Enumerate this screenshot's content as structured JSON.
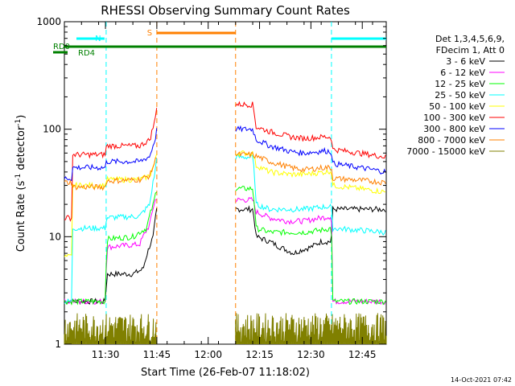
{
  "chart_data": {
    "type": "line",
    "title": "RHESSI Observing Summary Count Rates",
    "xlabel": "Start Time (26-Feb-07 11:18:02)",
    "ylabel_parts": [
      "Count Rate (s",
      "-1",
      " detector",
      "-1",
      ")"
    ],
    "y_scale": "log",
    "ylim": [
      1,
      1000
    ],
    "xlim_minutes": [
      0,
      94
    ],
    "x_ticks": [
      {
        "minute": 12,
        "label": "11:30"
      },
      {
        "minute": 27,
        "label": "11:45"
      },
      {
        "minute": 42,
        "label": "12:00"
      },
      {
        "minute": 57,
        "label": "12:15"
      },
      {
        "minute": 72,
        "label": "12:30"
      },
      {
        "minute": 87,
        "label": "12:45"
      }
    ],
    "y_ticks": [
      {
        "value": 1,
        "label": "1"
      },
      {
        "value": 10,
        "label": "10"
      },
      {
        "value": 100,
        "label": "100"
      },
      {
        "value": 1000,
        "label": "1000"
      }
    ],
    "legend_header": [
      "Det 1,3,4,5,6,9,",
      "FDecim 1, Att 0"
    ],
    "series": [
      {
        "name": "3 - 6 keV",
        "color": "#000000",
        "points": [
          [
            0,
            2.5
          ],
          [
            12.2,
            2.5
          ],
          [
            12.3,
            4.5
          ],
          [
            20,
            4.5
          ],
          [
            23,
            5
          ],
          [
            26,
            10
          ],
          [
            27,
            18
          ],
          [
            55,
            18
          ],
          [
            56,
            10
          ],
          [
            60,
            9
          ],
          [
            63,
            8
          ],
          [
            67,
            7
          ],
          [
            69,
            7.5
          ],
          [
            72,
            8
          ],
          [
            75,
            9
          ],
          [
            78,
            9
          ],
          [
            78.3,
            18
          ],
          [
            94,
            18
          ]
        ]
      },
      {
        "name": "6 - 12 keV",
        "color": "#ff00ff",
        "points": [
          [
            0,
            2.5
          ],
          [
            12.2,
            2.5
          ],
          [
            12.3,
            8
          ],
          [
            22,
            8.5
          ],
          [
            25,
            13
          ],
          [
            26.5,
            22
          ],
          [
            55,
            22
          ],
          [
            56,
            17
          ],
          [
            60,
            15
          ],
          [
            65,
            14
          ],
          [
            70,
            14
          ],
          [
            75,
            15
          ],
          [
            78,
            15.5
          ],
          [
            78.3,
            2.5
          ],
          [
            94,
            2.5
          ]
        ]
      },
      {
        "name": "12 - 25 keV",
        "color": "#00ff00",
        "points": [
          [
            0,
            2.5
          ],
          [
            12.2,
            2.5
          ],
          [
            12.3,
            9.5
          ],
          [
            20,
            10
          ],
          [
            24,
            12
          ],
          [
            26,
            20
          ],
          [
            27,
            28
          ],
          [
            55,
            28
          ],
          [
            56,
            12
          ],
          [
            60,
            11
          ],
          [
            66,
            11
          ],
          [
            70,
            11
          ],
          [
            75,
            11.5
          ],
          [
            78,
            12
          ],
          [
            78.3,
            2.5
          ],
          [
            94,
            2.5
          ]
        ]
      },
      {
        "name": "25 - 50 keV",
        "color": "#00ffff",
        "points": [
          [
            0,
            2.5
          ],
          [
            2.3,
            2.5
          ],
          [
            2.4,
            12
          ],
          [
            12,
            12
          ],
          [
            12.3,
            15
          ],
          [
            22,
            15.5
          ],
          [
            25,
            20
          ],
          [
            26.5,
            40
          ],
          [
            27,
            55
          ],
          [
            55,
            55
          ],
          [
            56,
            20
          ],
          [
            60,
            18
          ],
          [
            66,
            18
          ],
          [
            70,
            18
          ],
          [
            76,
            19
          ],
          [
            78,
            19
          ],
          [
            78.3,
            12
          ],
          [
            94,
            11
          ]
        ]
      },
      {
        "name": "50 - 100 keV",
        "color": "#ffff00",
        "points": [
          [
            0,
            6.5
          ],
          [
            2.3,
            6.5
          ],
          [
            2.4,
            30
          ],
          [
            12,
            30
          ],
          [
            12.3,
            34
          ],
          [
            22,
            34
          ],
          [
            25,
            37
          ],
          [
            26.5,
            50
          ],
          [
            27,
            60
          ],
          [
            55,
            60
          ],
          [
            56,
            46
          ],
          [
            60,
            40
          ],
          [
            66,
            38
          ],
          [
            70,
            38
          ],
          [
            76,
            40
          ],
          [
            78,
            41
          ],
          [
            78.3,
            30
          ],
          [
            94,
            26
          ]
        ]
      },
      {
        "name": "100 - 300 keV",
        "color": "#ff0000",
        "points": [
          [
            0,
            15
          ],
          [
            2.3,
            15
          ],
          [
            2.4,
            58
          ],
          [
            12,
            58
          ],
          [
            12.3,
            70
          ],
          [
            22,
            70
          ],
          [
            25,
            80
          ],
          [
            26.5,
            120
          ],
          [
            27,
            170
          ],
          [
            27.1,
            170
          ],
          [
            55,
            170
          ],
          [
            56,
            105
          ],
          [
            60,
            95
          ],
          [
            66,
            85
          ],
          [
            70,
            82
          ],
          [
            76,
            85
          ],
          [
            78,
            84
          ],
          [
            78.3,
            65
          ],
          [
            94,
            55
          ]
        ]
      },
      {
        "name": "300 - 800 keV",
        "color": "#0000ff",
        "points": [
          [
            0,
            35
          ],
          [
            2.3,
            35
          ],
          [
            2.4,
            44
          ],
          [
            12,
            44
          ],
          [
            12.3,
            50
          ],
          [
            22,
            50
          ],
          [
            25,
            56
          ],
          [
            26.5,
            80
          ],
          [
            27,
            100
          ],
          [
            55,
            100
          ],
          [
            56,
            80
          ],
          [
            60,
            70
          ],
          [
            66,
            62
          ],
          [
            70,
            60
          ],
          [
            76,
            63
          ],
          [
            78,
            62
          ],
          [
            78.3,
            48
          ],
          [
            94,
            40
          ]
        ]
      },
      {
        "name": "800 - 7000 keV",
        "color": "#ff8000",
        "points": [
          [
            0,
            32
          ],
          [
            2.3,
            32
          ],
          [
            2.4,
            29
          ],
          [
            12,
            29
          ],
          [
            12.3,
            33
          ],
          [
            22,
            34
          ],
          [
            25,
            37
          ],
          [
            26.5,
            50
          ],
          [
            27,
            58
          ],
          [
            55,
            58
          ],
          [
            56,
            56
          ],
          [
            60,
            50
          ],
          [
            66,
            44
          ],
          [
            70,
            42
          ],
          [
            76,
            44
          ],
          [
            78,
            44
          ],
          [
            78.3,
            35
          ],
          [
            94,
            32
          ]
        ]
      },
      {
        "name": "7000 - 15000 keV",
        "color": "#808000",
        "points": [
          [
            0,
            1.7
          ],
          [
            94,
            1.7
          ]
        ]
      }
    ],
    "flags": [
      {
        "name": "N",
        "label": "N",
        "color": "#00ffff",
        "segments": [
          [
            0,
            12.2
          ],
          [
            78,
            94
          ]
        ]
      },
      {
        "name": "S",
        "label": "S",
        "color": "#ff8000",
        "segments": [
          [
            27,
            50
          ]
        ]
      },
      {
        "name": "RD0",
        "label": "RD0",
        "color": "#008000",
        "segments": [
          [
            0,
            94
          ]
        ]
      },
      {
        "name": "RD4",
        "label": "RD4",
        "color": "#008000",
        "segments": [
          [
            0,
            3
          ]
        ]
      }
    ],
    "data_gaps": [
      [
        27,
        50
      ]
    ]
  },
  "footer": {
    "timestamp": "14-Oct-2021 07:42"
  }
}
